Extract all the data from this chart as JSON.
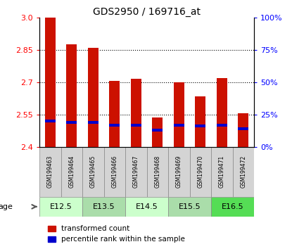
{
  "title": "GDS2950 / 169716_at",
  "samples": [
    "GSM199463",
    "GSM199464",
    "GSM199465",
    "GSM199466",
    "GSM199467",
    "GSM199468",
    "GSM199469",
    "GSM199470",
    "GSM199471",
    "GSM199472"
  ],
  "transformed_count": [
    3.0,
    2.875,
    2.86,
    2.705,
    2.715,
    2.535,
    2.7,
    2.635,
    2.72,
    2.555
  ],
  "percentile_rank": [
    20,
    19,
    19,
    17,
    17,
    13,
    17,
    16,
    17,
    14
  ],
  "y_min": 2.4,
  "y_max": 3.0,
  "y_ticks": [
    2.4,
    2.55,
    2.7,
    2.85,
    3.0
  ],
  "y_right_ticks": [
    0,
    25,
    50,
    75,
    100
  ],
  "age_groups": [
    {
      "label": "E12.5",
      "start": 0,
      "end": 2,
      "color": "#ccffcc"
    },
    {
      "label": "E13.5",
      "start": 2,
      "end": 4,
      "color": "#aaddaa"
    },
    {
      "label": "E14.5",
      "start": 4,
      "end": 6,
      "color": "#ccffcc"
    },
    {
      "label": "E15.5",
      "start": 6,
      "end": 8,
      "color": "#aaddaa"
    },
    {
      "label": "E16.5",
      "start": 8,
      "end": 10,
      "color": "#55dd55"
    }
  ],
  "bar_color": "#cc1100",
  "blue_color": "#0000cc",
  "bar_width": 0.5,
  "legend_red": "transformed count",
  "legend_blue": "percentile rank within the sample"
}
